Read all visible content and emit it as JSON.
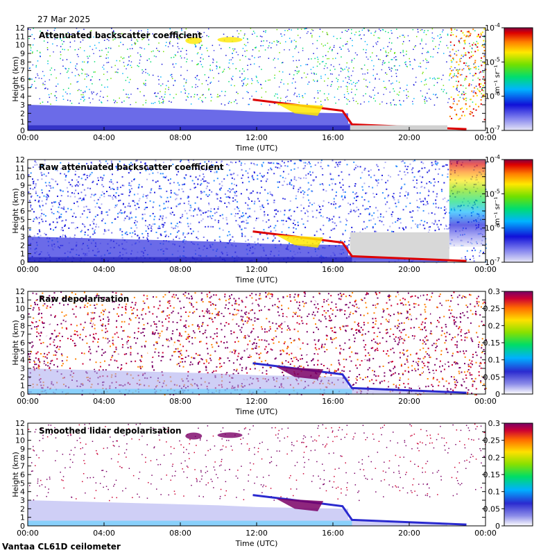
{
  "date_label": "27 Mar 2025",
  "footer_label": "Vantaa CL61D ceilometer",
  "chart_data": [
    {
      "type": "heatmap",
      "title": "Attenuated backscatter coefficient",
      "xlabel": "Time (UTC)",
      "ylabel": "Height (km)",
      "x_ticks": [
        "00:00",
        "04:00",
        "08:00",
        "12:00",
        "16:00",
        "20:00",
        "00:00"
      ],
      "y_ticks": [
        "0",
        "1",
        "2",
        "3",
        "4",
        "5",
        "6",
        "7",
        "8",
        "9",
        "10",
        "11",
        "12"
      ],
      "ylim": [
        0,
        12
      ],
      "colorbar": {
        "scale": "log",
        "range": [
          1e-07,
          0.0001
        ],
        "ticks": [
          "10-7",
          "10-6",
          "10-5",
          "10-4"
        ],
        "unit": "m-1 sr-1"
      }
    },
    {
      "type": "heatmap",
      "title": "Raw attenuated backscatter coefficient",
      "xlabel": "Time (UTC)",
      "ylabel": "Height (km)",
      "x_ticks": [
        "00:00",
        "04:00",
        "08:00",
        "12:00",
        "16:00",
        "20:00",
        "00:00"
      ],
      "y_ticks": [
        "0",
        "1",
        "2",
        "3",
        "4",
        "5",
        "6",
        "7",
        "8",
        "9",
        "10",
        "11",
        "12"
      ],
      "ylim": [
        0,
        12
      ],
      "colorbar": {
        "scale": "log",
        "range": [
          1e-07,
          0.0001
        ],
        "ticks": [
          "10-7",
          "10-6",
          "10-5",
          "10-4"
        ],
        "unit": "m-1 sr-1"
      }
    },
    {
      "type": "heatmap",
      "title": "Raw depolarisation",
      "xlabel": "Time (UTC)",
      "ylabel": "Height (km)",
      "x_ticks": [
        "00:00",
        "04:00",
        "08:00",
        "12:00",
        "16:00",
        "20:00",
        "00:00"
      ],
      "y_ticks": [
        "0",
        "1",
        "2",
        "3",
        "4",
        "5",
        "6",
        "7",
        "8",
        "9",
        "10",
        "11",
        "12"
      ],
      "ylim": [
        0,
        12
      ],
      "colorbar": {
        "scale": "linear",
        "range": [
          0,
          0.3
        ],
        "ticks": [
          "0",
          "0.05",
          "0.1",
          "0.15",
          "0.2",
          "0.25",
          "0.3"
        ]
      }
    },
    {
      "type": "heatmap",
      "title": "Smoothed lidar depolarisation",
      "xlabel": "Time (UTC)",
      "ylabel": "Height (km)",
      "x_ticks": [
        "00:00",
        "04:00",
        "08:00",
        "12:00",
        "16:00",
        "20:00",
        "00:00"
      ],
      "y_ticks": [
        "0",
        "1",
        "2",
        "3",
        "4",
        "5",
        "6",
        "7",
        "8",
        "9",
        "10",
        "11",
        "12"
      ],
      "ylim": [
        0,
        12
      ],
      "colorbar": {
        "scale": "linear",
        "range": [
          0,
          0.3
        ],
        "ticks": [
          "0",
          "0.05",
          "0.1",
          "0.15",
          "0.2",
          "0.25",
          "0.3"
        ]
      }
    }
  ]
}
